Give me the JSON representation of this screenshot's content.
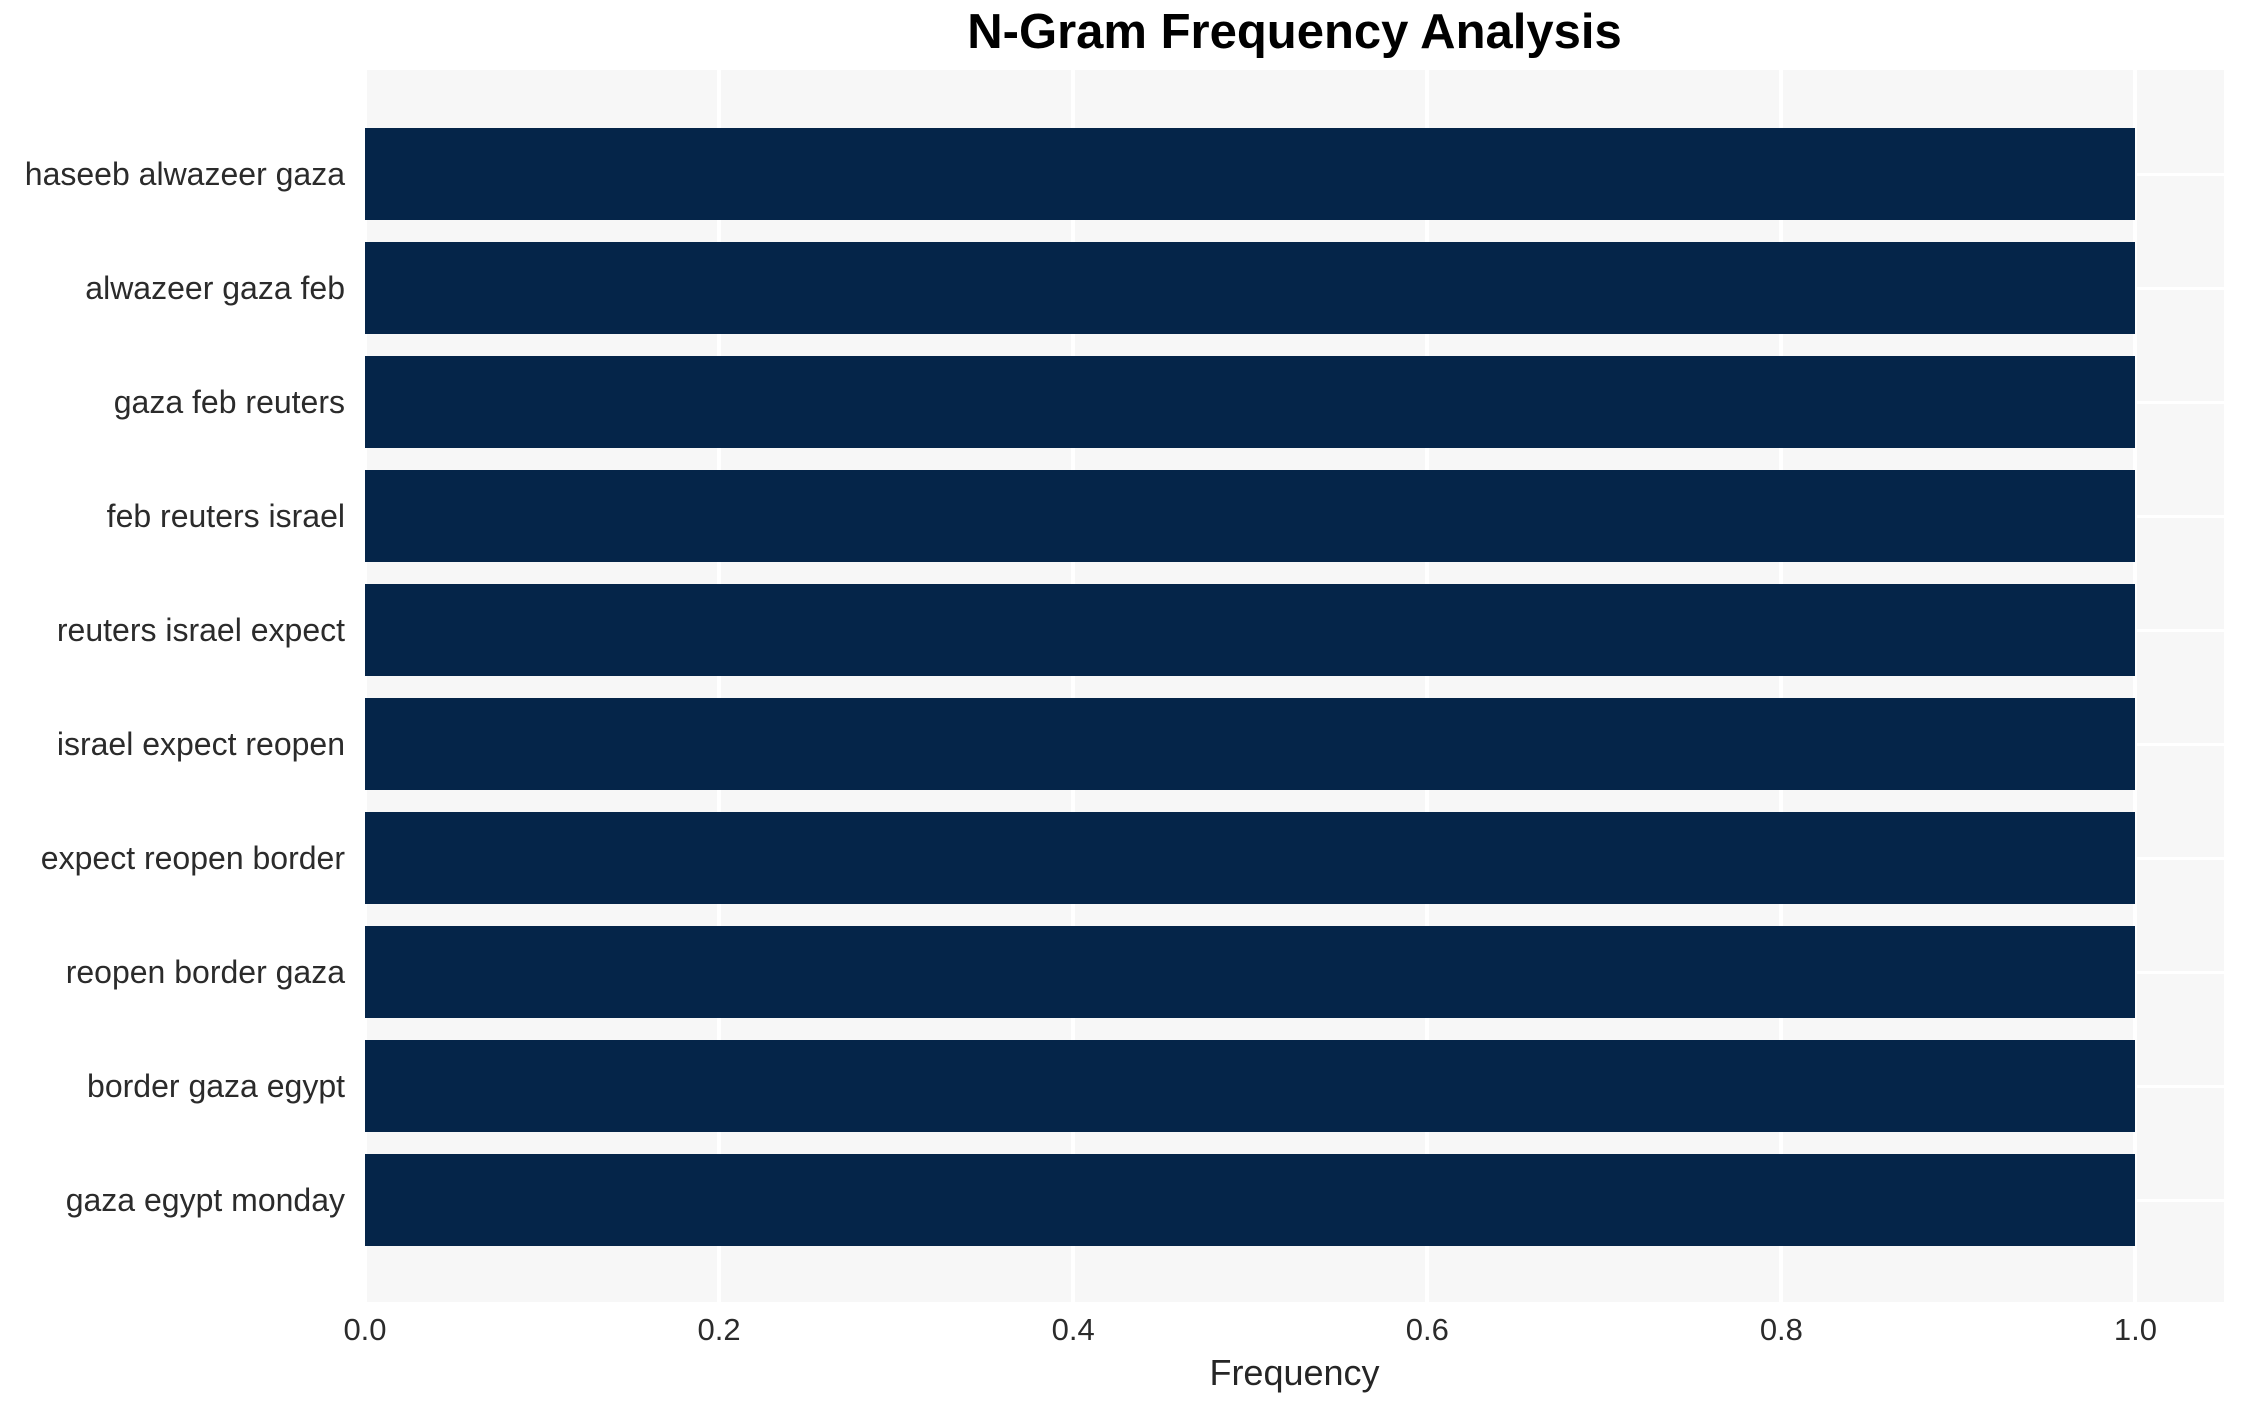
{
  "chart_data": {
    "type": "bar",
    "orientation": "horizontal",
    "title": "N-Gram Frequency Analysis",
    "xlabel": "Frequency",
    "ylabel": "",
    "categories": [
      "haseeb alwazeer gaza",
      "alwazeer gaza feb",
      "gaza feb reuters",
      "feb reuters israel",
      "reuters israel expect",
      "israel expect reopen",
      "expect reopen border",
      "reopen border gaza",
      "border gaza egypt",
      "gaza egypt monday"
    ],
    "values": [
      1.0,
      1.0,
      1.0,
      1.0,
      1.0,
      1.0,
      1.0,
      1.0,
      1.0,
      1.0
    ],
    "xticks": [
      {
        "value": 0.0,
        "label": "0.0"
      },
      {
        "value": 0.2,
        "label": "0.2"
      },
      {
        "value": 0.4,
        "label": "0.4"
      },
      {
        "value": 0.6,
        "label": "0.6"
      },
      {
        "value": 0.8,
        "label": "0.8"
      },
      {
        "value": 1.0,
        "label": "1.0"
      }
    ],
    "xlim": [
      0,
      1.05
    ],
    "grid": "white gridlines, vertical at x ticks and horizontal at bar centers",
    "legend": false,
    "colors": {
      "bar": "#052549",
      "plot_background": "#f7f7f7",
      "gridline": "#ffffff",
      "tick_text": "#2b2b2b",
      "title_text": "#000000"
    }
  }
}
